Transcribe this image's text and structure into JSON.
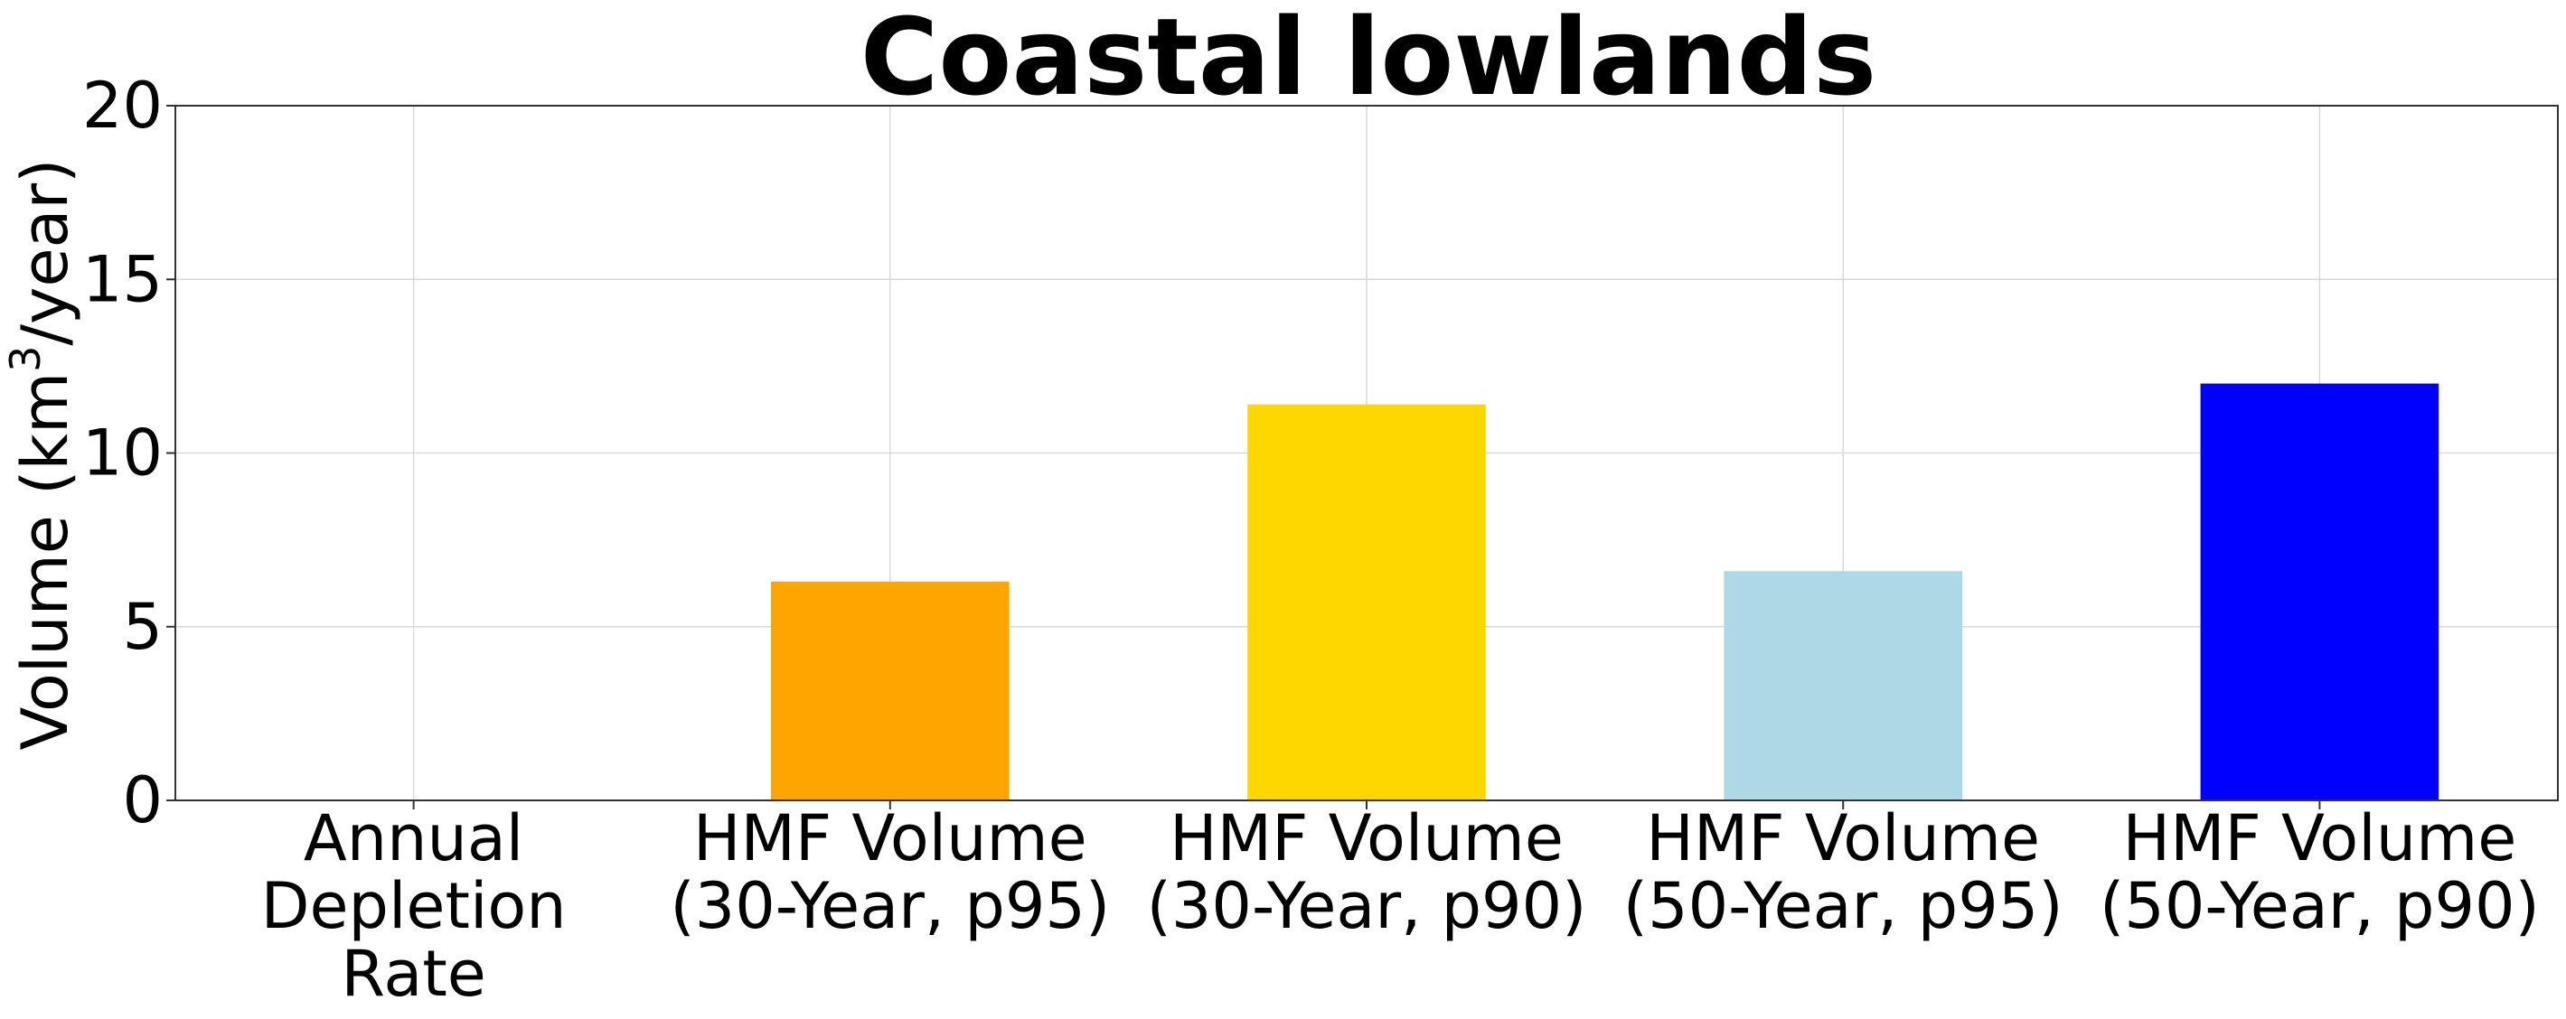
{
  "chart_data": {
    "type": "bar",
    "title": "Coastal lowlands",
    "ylabel": {
      "prefix": "Volume (km",
      "superscript": "3",
      "suffix": "/year)"
    },
    "xlabel": "",
    "ylim": [
      0,
      20
    ],
    "yticks": [
      0,
      5,
      10,
      15,
      20
    ],
    "grid": true,
    "legend": "none",
    "categories": [
      [
        "Annual",
        "Depletion",
        "Rate"
      ],
      [
        "HMF Volume",
        "(30-Year, p95)"
      ],
      [
        "HMF Volume",
        "(30-Year, p90)"
      ],
      [
        "HMF Volume",
        "(50-Year, p95)"
      ],
      [
        "HMF Volume",
        "(50-Year, p90)"
      ]
    ],
    "values": [
      0,
      6.3,
      11.4,
      6.6,
      12.0
    ],
    "colors": [
      "#1f77b4",
      "#ffa500",
      "#ffd700",
      "#add8e6",
      "#0000ff"
    ]
  }
}
